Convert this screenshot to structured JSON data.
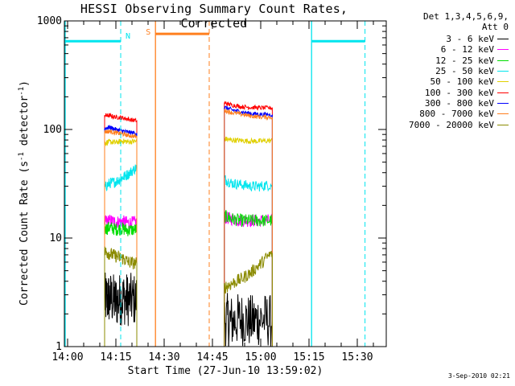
{
  "colors": {
    "cyan": "#00e5ee",
    "orange": "#ff7f1e"
  },
  "chart_data": {
    "type": "line",
    "title": "HESSI Observing Summary Count Rates, Corrected",
    "xlabel": "Start Time (27-Jun-10 13:59:02)",
    "ylabel_main": "Corrected Count Rate (s",
    "ylabel_sup1": "-1",
    "ylabel_mid": " detector",
    "ylabel_sup2": "-1",
    "ylabel_end": ")",
    "x_unit": "minutes after 13:59:02",
    "xlim": [
      0,
      100
    ],
    "ylim": [
      1,
      1000
    ],
    "y_scale": "log",
    "x_ticks": [
      {
        "x": 1,
        "label": "14:00"
      },
      {
        "x": 16,
        "label": "14:15"
      },
      {
        "x": 31,
        "label": "14:30"
      },
      {
        "x": 46,
        "label": "14:45"
      },
      {
        "x": 61,
        "label": "15:00"
      },
      {
        "x": 76,
        "label": "15:15"
      },
      {
        "x": 91,
        "label": "15:30"
      }
    ],
    "y_ticks": [
      {
        "y": 1,
        "label": "1"
      },
      {
        "y": 10,
        "label": "10"
      },
      {
        "y": 100,
        "label": "100"
      },
      {
        "y": 1000,
        "label": "1000"
      }
    ],
    "legend_header_1": "Det 1,3,4,5,6,9,",
    "legend_header_2": "Att 0",
    "legend_placement": "right, outside plot",
    "legend": [
      {
        "label": "3 - 6 keV",
        "color": "#000000"
      },
      {
        "label": "6 - 12 keV",
        "color": "#ff00ff"
      },
      {
        "label": "12 - 25 keV",
        "color": "#00dd00"
      },
      {
        "label": "25 - 50 keV",
        "color": "#00e5ee"
      },
      {
        "label": "50 - 100 keV",
        "color": "#e0d000"
      },
      {
        "label": "100 - 300 keV",
        "color": "#ff0000"
      },
      {
        "label": "300 - 800 keV",
        "color": "#0000ff"
      },
      {
        "label": "800 - 7000 keV",
        "color": "#ff7f1e"
      },
      {
        "label": "7000 - 20000 keV",
        "color": "#8b8b00"
      }
    ],
    "series": [
      {
        "name": "3 - 6 keV",
        "color": "#000000",
        "noise": 0.25,
        "segments": [
          {
            "x": [
              12.5,
              14,
              16,
              18,
              20,
              22.5
            ],
            "y": [
              2.7,
              2.8,
              2.6,
              2.8,
              2.7,
              2.7
            ]
          },
          {
            "x": [
              49.7,
              52,
              55,
              58,
              61,
              64.6
            ],
            "y": [
              1.8,
              1.7,
              1.8,
              1.7,
              1.8,
              1.7
            ]
          }
        ]
      },
      {
        "name": "6 - 12 keV",
        "color": "#ff00ff",
        "noise": 0.06,
        "segments": [
          {
            "x": [
              12.5,
              14,
              16,
              18,
              20,
              22.5
            ],
            "y": [
              14,
              14.5,
              14,
              14.2,
              13.8,
              14
            ]
          },
          {
            "x": [
              49.7,
              52,
              55,
              58,
              61,
              64.6
            ],
            "y": [
              15.5,
              15,
              14.5,
              14.5,
              14.5,
              14.5
            ]
          }
        ]
      },
      {
        "name": "12 - 25 keV",
        "color": "#00dd00",
        "noise": 0.06,
        "segments": [
          {
            "x": [
              12.5,
              14,
              16,
              18,
              20,
              22.5
            ],
            "y": [
              12,
              12.5,
              12,
              12.2,
              11.8,
              12
            ]
          },
          {
            "x": [
              49.7,
              52,
              55,
              58,
              61,
              64.6
            ],
            "y": [
              16,
              15,
              14.5,
              14.5,
              14.5,
              14.5
            ]
          }
        ]
      },
      {
        "name": "25 - 50 keV",
        "color": "#00e5ee",
        "noise": 0.05,
        "segments": [
          {
            "x": [
              12.5,
              14,
              16,
              18,
              20,
              22.5
            ],
            "y": [
              29,
              32,
              33,
              36,
              39,
              45
            ]
          },
          {
            "x": [
              49.7,
              52,
              55,
              58,
              61,
              64.6
            ],
            "y": [
              35,
              32,
              31,
              30,
              30,
              31
            ]
          }
        ]
      },
      {
        "name": "50 - 100 keV",
        "color": "#e0d000",
        "noise": 0.025,
        "segments": [
          {
            "x": [
              12.5,
              14,
              16,
              18,
              20,
              22.5
            ],
            "y": [
              75,
              77,
              76,
              78,
              77,
              78
            ]
          },
          {
            "x": [
              49.7,
              52,
              55,
              58,
              61,
              64.6
            ],
            "y": [
              82,
              80,
              79,
              78,
              78,
              79
            ]
          }
        ]
      },
      {
        "name": "100 - 300 keV",
        "color": "#ff0000",
        "noise": 0.02,
        "segments": [
          {
            "x": [
              12.5,
              14,
              16,
              18,
              20,
              22.5
            ],
            "y": [
              135,
              134,
              130,
              128,
              124,
              120
            ]
          },
          {
            "x": [
              49.7,
              52,
              55,
              58,
              61,
              64.6
            ],
            "y": [
              175,
              168,
              162,
              160,
              158,
              158
            ]
          }
        ]
      },
      {
        "name": "300 - 800 keV",
        "color": "#0000ff",
        "noise": 0.02,
        "segments": [
          {
            "x": [
              12.5,
              14,
              16,
              18,
              20,
              22.5
            ],
            "y": [
              102,
              105,
              100,
              97,
              94,
              92
            ]
          },
          {
            "x": [
              49.7,
              52,
              55,
              58,
              61,
              64.6
            ],
            "y": [
              160,
              152,
              145,
              140,
              138,
              137
            ]
          }
        ]
      },
      {
        "name": "800 - 7000 keV",
        "color": "#ff7f1e",
        "noise": 0.02,
        "segments": [
          {
            "x": [
              12.5,
              14,
              16,
              18,
              20,
              22.5
            ],
            "y": [
              95,
              96,
              93,
              91,
              88,
              86
            ]
          },
          {
            "x": [
              49.7,
              52,
              55,
              58,
              61,
              64.6
            ],
            "y": [
              150,
              143,
              138,
              133,
              130,
              130
            ]
          }
        ]
      },
      {
        "name": "7000 - 20000 keV",
        "color": "#8b8b00",
        "noise": 0.06,
        "segments": [
          {
            "x": [
              12.5,
              14,
              16,
              18,
              20,
              22.5
            ],
            "y": [
              7.5,
              7.2,
              6.8,
              6.5,
              6.0,
              5.8
            ]
          },
          {
            "x": [
              49.7,
              52,
              55,
              58,
              61,
              64.6
            ],
            "y": [
              3.5,
              3.8,
              4.2,
              4.8,
              5.8,
              7.3
            ]
          }
        ]
      }
    ],
    "markers": {
      "night": [
        {
          "start": 0,
          "end": 17.5,
          "label": "",
          "color": "#00e5ee"
        },
        {
          "start": 76.8,
          "end": 93.4,
          "label": "",
          "color": "#00e5ee"
        }
      ],
      "saa": [
        {
          "start": 28.3,
          "end": 45,
          "label": "S",
          "color": "#ff7f1e"
        }
      ],
      "night_label": "N",
      "night_end_dashed_x": [
        17.5,
        93.4
      ],
      "night_start_solid_x": [
        0,
        76.8
      ],
      "saa_start_solid_x": [
        28.3
      ],
      "saa_end_dashed_x": [
        45
      ]
    }
  },
  "footer": {
    "date_stamp": "3-Sep-2010 02:21"
  }
}
